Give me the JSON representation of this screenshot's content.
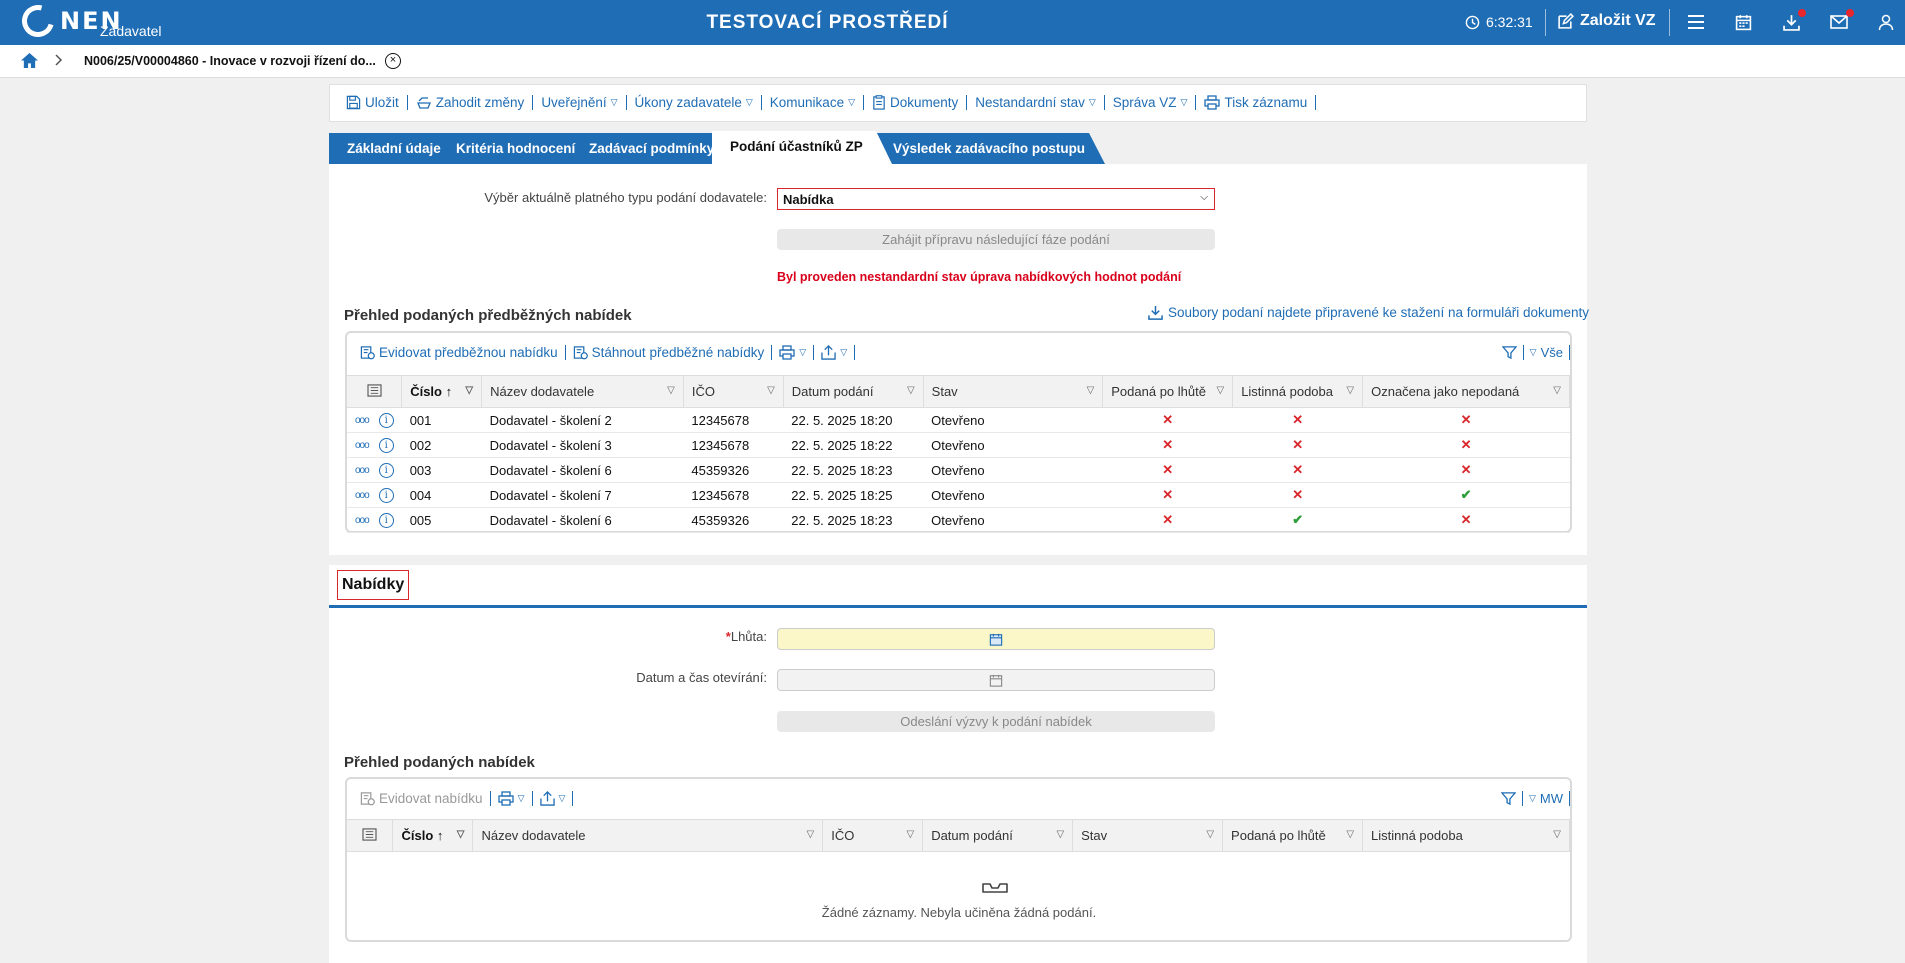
{
  "topbar": {
    "logo_text": "NEN",
    "logo_sub": "Zadavatel",
    "env_title": "TESTOVACÍ PROSTŘEDÍ",
    "clock": "6:32:31",
    "create_label": "Založit VZ",
    "icons": [
      "clock-icon",
      "edit-icon",
      "menu-icon",
      "calendar-icon",
      "download-icon",
      "mail-icon",
      "user-icon"
    ]
  },
  "breadcrumb": {
    "title": "N006/25/V00004860 - Inovace v rozvoji řízení do..."
  },
  "toolbar": {
    "items": [
      {
        "label": "Uložit",
        "dropdown": false
      },
      {
        "label": "Zahodit změny",
        "dropdown": false
      },
      {
        "label": "Uveřejnění",
        "dropdown": true
      },
      {
        "label": "Úkony zadavatele",
        "dropdown": true
      },
      {
        "label": "Komunikace",
        "dropdown": true
      },
      {
        "label": "Dokumenty",
        "dropdown": false
      },
      {
        "label": "Nestandardní stav",
        "dropdown": true
      },
      {
        "label": "Správa VZ",
        "dropdown": true
      },
      {
        "label": "Tisk záznamu",
        "dropdown": false
      }
    ]
  },
  "tabs": [
    {
      "label": "Základní údaje",
      "active": false
    },
    {
      "label": "Kritéria hodnocení",
      "active": false
    },
    {
      "label": "Zadávací podmínky",
      "active": false
    },
    {
      "label": "Podání účastníků ZP",
      "active": true
    },
    {
      "label": "Výsledek zadávacího postupu",
      "active": false
    }
  ],
  "submission": {
    "type_label": "Výběr aktuálně platného typu podání dodavatele:",
    "type_value": "Nabídka",
    "next_phase_button": "Zahájit přípravu následující fáze podání",
    "warning": "Byl proveden nestandardní stav úprava nabídkových hodnot podání"
  },
  "preliminary": {
    "title": "Přehled podaných předběžných nabídek",
    "download_link": "Soubory podaní najdete připravené ke stažení na formuláři dokumenty",
    "tools": [
      "Evidovat předběžnou nabídku",
      "Stáhnout předběžné nabídky"
    ],
    "view_label": "Vše",
    "columns": [
      "Číslo",
      "Název dodavatele",
      "IČO",
      "Datum podání",
      "Stav",
      "Podaná po lhůtě",
      "Listinná podoba",
      "Označena jako nepodaná"
    ],
    "rows": [
      {
        "cislo": "001",
        "nazev": "Dodavatel - školení 2",
        "ico": "12345678",
        "datum": "22. 5. 2025 18:20",
        "stav": "Otevřeno",
        "po_lhute": false,
        "listinna": false,
        "nepodana": false
      },
      {
        "cislo": "002",
        "nazev": "Dodavatel - školení 3",
        "ico": "12345678",
        "datum": "22. 5. 2025 18:22",
        "stav": "Otevřeno",
        "po_lhute": false,
        "listinna": false,
        "nepodana": false
      },
      {
        "cislo": "003",
        "nazev": "Dodavatel - školení 6",
        "ico": "45359326",
        "datum": "22. 5. 2025 18:23",
        "stav": "Otevřeno",
        "po_lhute": false,
        "listinna": false,
        "nepodana": false
      },
      {
        "cislo": "004",
        "nazev": "Dodavatel - školení 7",
        "ico": "12345678",
        "datum": "22. 5. 2025 18:25",
        "stav": "Otevřeno",
        "po_lhute": false,
        "listinna": false,
        "nepodana": true
      },
      {
        "cislo": "005",
        "nazev": "Dodavatel - školení 6",
        "ico": "45359326",
        "datum": "22. 5. 2025 18:23",
        "stav": "Otevřeno",
        "po_lhute": false,
        "listinna": true,
        "nepodana": false
      }
    ]
  },
  "offers": {
    "section_title": "Nabídky",
    "deadline_label": "Lhůta:",
    "opening_label": "Datum a čas otevírání:",
    "send_button": "Odeslání výzvy k podání nabídek",
    "title": "Přehled podaných nabídek",
    "tools": [
      "Evidovat nabídku"
    ],
    "view_label": "MW",
    "columns": [
      "Číslo",
      "Název dodavatele",
      "IČO",
      "Datum podání",
      "Stav",
      "Podaná po lhůtě",
      "Listinná podoba"
    ],
    "empty_text": "Žádné záznamy. Nebyla učiněna žádná podání."
  },
  "colors": {
    "primary": "#1f6db5",
    "danger": "#d9262b",
    "success": "#2e9e3a",
    "required_bg": "#fbf7c8"
  }
}
